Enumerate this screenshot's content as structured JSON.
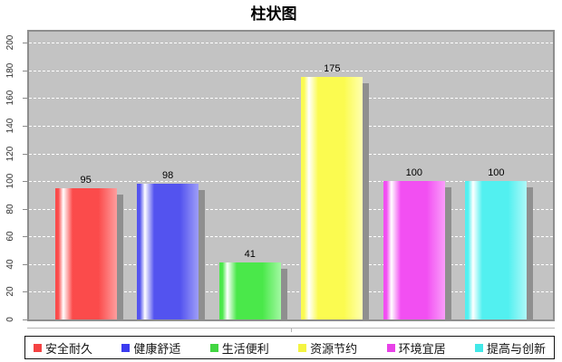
{
  "title": "柱状图",
  "chart_data": {
    "type": "bar",
    "title": "柱状图",
    "categories": [
      "安全耐久",
      "健康舒适",
      "生活便利",
      "资源节约",
      "环境宜居",
      "提高与创新"
    ],
    "values": [
      95,
      98,
      41,
      175,
      100,
      100
    ],
    "bar_colors": [
      "#fb4b4b",
      "#5353ef",
      "#4ae84a",
      "#fbfb50",
      "#f24ff2",
      "#52f0f0"
    ],
    "bar_colors_light": [
      "#ff9e9e",
      "#9e9ef8",
      "#a2f8a2",
      "#ffffb2",
      "#fa9efa",
      "#aef8f8"
    ],
    "xlabel": "",
    "ylabel": "",
    "yticks": [
      0,
      20,
      40,
      60,
      80,
      100,
      120,
      140,
      160,
      180,
      200
    ],
    "ylim": [
      0,
      208
    ],
    "grid": "horizontal-dashed-white",
    "plot_background": "#c3c3c3",
    "shadow_color": "#8f8f8f",
    "legend_position": "bottom"
  },
  "legend": {
    "items": [
      {
        "label": "安全耐久",
        "color": "#f44242"
      },
      {
        "label": "健康舒适",
        "color": "#3c3cf0"
      },
      {
        "label": "生活便利",
        "color": "#42d642"
      },
      {
        "label": "资源节约",
        "color": "#f4f442"
      },
      {
        "label": "环境宜居",
        "color": "#e842e8"
      },
      {
        "label": "提高与创新",
        "color": "#42e8e8"
      }
    ]
  }
}
